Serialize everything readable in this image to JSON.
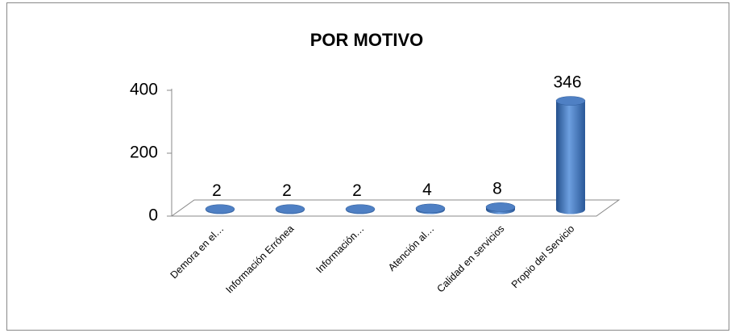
{
  "chart_data": {
    "type": "bar",
    "title": "POR MOTIVO",
    "categories": [
      "Demora en el…",
      "Información Errónea",
      "Información…",
      "Atención al…",
      "Calidad en servicios",
      "Propio del Servicio"
    ],
    "values": [
      2,
      2,
      2,
      4,
      8,
      346
    ],
    "color": "#4a7cc0",
    "ylim": [
      0,
      400
    ],
    "yticks": [
      0,
      200,
      400
    ],
    "grid": false
  }
}
